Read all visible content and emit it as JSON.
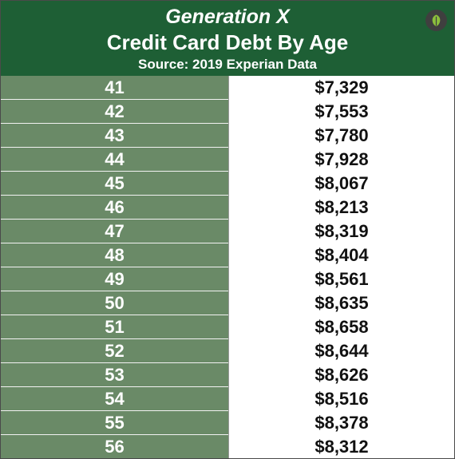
{
  "header": {
    "line1": "Generation X",
    "line2": "Credit Card Debt By Age",
    "line3": "Source: 2019 Experian Data",
    "logo_icon": "leaf-logo-icon"
  },
  "colors": {
    "header_bg": "#1e5f35",
    "age_cell_bg": "#6a8a67",
    "debt_cell_bg": "#ffffff",
    "logo_circle": "#3f3f3f",
    "logo_leaf": "#8bbf3c"
  },
  "chart_data": {
    "type": "table",
    "title": "Generation X",
    "subtitle": "Credit Card Debt By Age",
    "source": "Source: 2019 Experian Data",
    "columns": [
      "",
      ""
    ],
    "rows": [
      {
        "age": "41",
        "debt": "$7,329",
        "value": 7329
      },
      {
        "age": "42",
        "debt": "$7,553",
        "value": 7553
      },
      {
        "age": "43",
        "debt": "$7,780",
        "value": 7780
      },
      {
        "age": "44",
        "debt": "$7,928",
        "value": 7928
      },
      {
        "age": "45",
        "debt": "$8,067",
        "value": 8067
      },
      {
        "age": "46",
        "debt": "$8,213",
        "value": 8213
      },
      {
        "age": "47",
        "debt": "$8,319",
        "value": 8319
      },
      {
        "age": "48",
        "debt": "$8,404",
        "value": 8404
      },
      {
        "age": "49",
        "debt": "$8,561",
        "value": 8561
      },
      {
        "age": "50",
        "debt": "$8,635",
        "value": 8635
      },
      {
        "age": "51",
        "debt": "$8,658",
        "value": 8658
      },
      {
        "age": "52",
        "debt": "$8,644",
        "value": 8644
      },
      {
        "age": "53",
        "debt": "$8,626",
        "value": 8626
      },
      {
        "age": "54",
        "debt": "$8,516",
        "value": 8516
      },
      {
        "age": "55",
        "debt": "$8,378",
        "value": 8378
      },
      {
        "age": "56",
        "debt": "$8,312",
        "value": 8312
      }
    ]
  }
}
